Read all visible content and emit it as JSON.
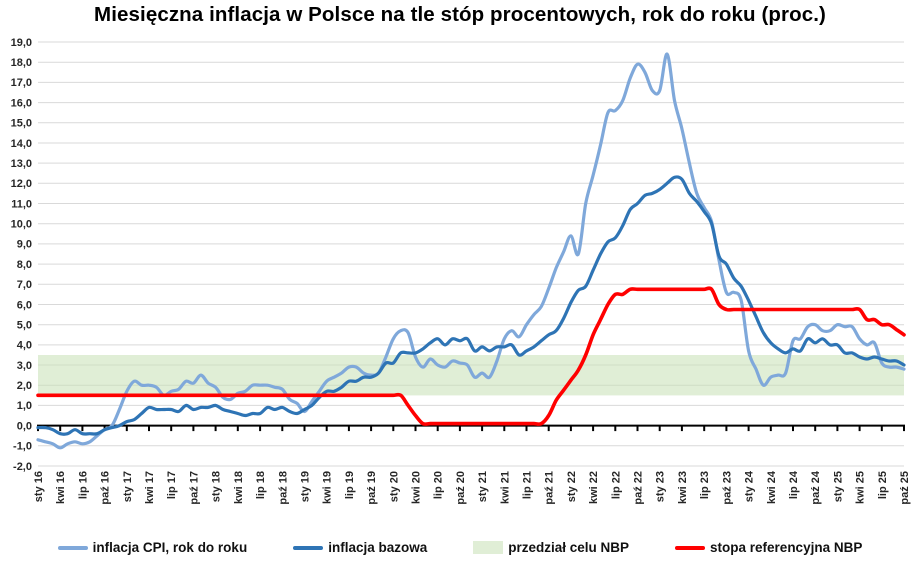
{
  "title": "Miesięczna inflacja w Polsce na tle stóp procentowych, rok do roku (proc.)",
  "colors": {
    "cpi": "#7FA8DA",
    "core": "#2E74B5",
    "rate": "#FF0000",
    "band_fill": "rgba(198,224,180,0.55)",
    "grid": "#D9D9D9",
    "axis": "#000000",
    "tick_text": "#262626"
  },
  "legend": {
    "items": [
      {
        "label": "inflacja CPI, rok do roku",
        "series": "cpi",
        "swatch": "line"
      },
      {
        "label": "inflacja bazowa",
        "series": "core",
        "swatch": "line"
      },
      {
        "label": "przedział celu NBP",
        "series": "band",
        "swatch": "band"
      },
      {
        "label": "stopa referencyjna NBP",
        "series": "rate",
        "swatch": "line"
      }
    ]
  },
  "chart_data": {
    "type": "line",
    "title": "Miesięczna inflacja w Polsce na tle stóp procentowych, rok do roku (proc.)",
    "frequency": "monthly",
    "x_start": "sty 16",
    "x_end": "paź 25",
    "ylim": [
      -2.0,
      19.0
    ],
    "ytick_step": 1.0,
    "grid": "horizontal",
    "legend_position": "bottom",
    "y_tick_labels": [
      "19,0",
      "18,0",
      "17,0",
      "16,0",
      "15,0",
      "14,0",
      "13,0",
      "12,0",
      "11,0",
      "10,0",
      "9,0",
      "8,0",
      "7,0",
      "6,0",
      "5,0",
      "4,0",
      "3,0",
      "2,0",
      "1,0",
      "0,0",
      "-1,0",
      "-2,0"
    ],
    "x_tick_labels": [
      "sty 16",
      "kwi 16",
      "lip 16",
      "paź 16",
      "sty 17",
      "kwi 17",
      "lip 17",
      "paź 17",
      "sty 18",
      "kwi 18",
      "lip 18",
      "paź 18",
      "sty 19",
      "kwi 19",
      "lip 19",
      "paź 19",
      "sty 20",
      "kwi 20",
      "lip 20",
      "paź 20",
      "sty 21",
      "kwi 21",
      "lip 21",
      "paź 21",
      "sty 22",
      "kwi 22",
      "lip 22",
      "paź 22",
      "sty 23",
      "kwi 23",
      "lip 23",
      "paź 23",
      "sty 24",
      "kwi 24",
      "lip 24",
      "paź 24",
      "sty 25",
      "kwi 25",
      "lip 25",
      "paź 25"
    ],
    "x_ticks_every_n_months": 3,
    "band": {
      "name": "przedział celu NBP",
      "from": 1.5,
      "to": 3.5
    },
    "series": [
      {
        "name": "inflacja CPI, rok do roku",
        "key": "cpi",
        "values": [
          -0.7,
          -0.8,
          -0.9,
          -1.1,
          -0.9,
          -0.8,
          -0.9,
          -0.8,
          -0.5,
          -0.2,
          0.0,
          0.8,
          1.7,
          2.2,
          2.0,
          2.0,
          1.9,
          1.5,
          1.7,
          1.8,
          2.2,
          2.1,
          2.5,
          2.1,
          1.9,
          1.4,
          1.3,
          1.6,
          1.7,
          2.0,
          2.0,
          2.0,
          1.9,
          1.8,
          1.3,
          1.1,
          0.7,
          1.2,
          1.7,
          2.2,
          2.4,
          2.6,
          2.9,
          2.9,
          2.6,
          2.5,
          2.6,
          3.4,
          4.3,
          4.7,
          4.6,
          3.4,
          2.9,
          3.3,
          3.0,
          2.9,
          3.2,
          3.1,
          3.0,
          2.4,
          2.6,
          2.4,
          3.2,
          4.3,
          4.7,
          4.4,
          5.0,
          5.5,
          5.9,
          6.8,
          7.8,
          8.6,
          9.4,
          8.5,
          11.0,
          12.4,
          13.9,
          15.5,
          15.6,
          16.1,
          17.2,
          17.9,
          17.5,
          16.6,
          16.6,
          18.4,
          16.1,
          14.7,
          13.0,
          11.5,
          10.8,
          10.1,
          8.2,
          6.6,
          6.6,
          6.2,
          3.7,
          2.8,
          2.0,
          2.4,
          2.5,
          2.6,
          4.2,
          4.3,
          4.9,
          5.0,
          4.7,
          4.7,
          5.0,
          4.9,
          4.9,
          4.3,
          4.0,
          4.1,
          3.1,
          2.9,
          2.9,
          2.8
        ]
      },
      {
        "name": "inflacja bazowa",
        "key": "core",
        "values": [
          -0.1,
          -0.1,
          -0.2,
          -0.4,
          -0.4,
          -0.2,
          -0.4,
          -0.4,
          -0.4,
          -0.2,
          -0.1,
          0.0,
          0.2,
          0.3,
          0.6,
          0.9,
          0.8,
          0.8,
          0.8,
          0.7,
          1.0,
          0.8,
          0.9,
          0.9,
          1.0,
          0.8,
          0.7,
          0.6,
          0.5,
          0.6,
          0.6,
          0.9,
          0.8,
          0.9,
          0.7,
          0.6,
          0.8,
          1.0,
          1.4,
          1.7,
          1.7,
          1.9,
          2.2,
          2.2,
          2.4,
          2.4,
          2.6,
          3.1,
          3.1,
          3.6,
          3.6,
          3.6,
          3.8,
          4.1,
          4.3,
          4.0,
          4.3,
          4.2,
          4.3,
          3.7,
          3.9,
          3.7,
          3.9,
          3.9,
          4.0,
          3.5,
          3.7,
          3.9,
          4.2,
          4.5,
          4.7,
          5.3,
          6.1,
          6.7,
          6.9,
          7.7,
          8.5,
          9.1,
          9.3,
          9.9,
          10.7,
          11.0,
          11.4,
          11.5,
          11.7,
          12.0,
          12.3,
          12.2,
          11.5,
          11.1,
          10.6,
          10.0,
          8.4,
          8.0,
          7.3,
          6.9,
          6.2,
          5.4,
          4.6,
          4.1,
          3.8,
          3.6,
          3.8,
          3.7,
          4.3,
          4.1,
          4.3,
          4.0,
          4.0,
          3.6,
          3.6,
          3.4,
          3.3,
          3.4,
          3.3,
          3.2,
          3.2,
          3.0
        ]
      },
      {
        "name": "stopa referencyjna NBP",
        "key": "rate",
        "values": [
          1.5,
          1.5,
          1.5,
          1.5,
          1.5,
          1.5,
          1.5,
          1.5,
          1.5,
          1.5,
          1.5,
          1.5,
          1.5,
          1.5,
          1.5,
          1.5,
          1.5,
          1.5,
          1.5,
          1.5,
          1.5,
          1.5,
          1.5,
          1.5,
          1.5,
          1.5,
          1.5,
          1.5,
          1.5,
          1.5,
          1.5,
          1.5,
          1.5,
          1.5,
          1.5,
          1.5,
          1.5,
          1.5,
          1.5,
          1.5,
          1.5,
          1.5,
          1.5,
          1.5,
          1.5,
          1.5,
          1.5,
          1.5,
          1.5,
          1.5,
          1.0,
          0.5,
          0.1,
          0.1,
          0.1,
          0.1,
          0.1,
          0.1,
          0.1,
          0.1,
          0.1,
          0.1,
          0.1,
          0.1,
          0.1,
          0.1,
          0.1,
          0.1,
          0.1,
          0.5,
          1.25,
          1.75,
          2.25,
          2.75,
          3.5,
          4.5,
          5.25,
          6.0,
          6.5,
          6.5,
          6.75,
          6.75,
          6.75,
          6.75,
          6.75,
          6.75,
          6.75,
          6.75,
          6.75,
          6.75,
          6.75,
          6.75,
          6.0,
          5.75,
          5.75,
          5.75,
          5.75,
          5.75,
          5.75,
          5.75,
          5.75,
          5.75,
          5.75,
          5.75,
          5.75,
          5.75,
          5.75,
          5.75,
          5.75,
          5.75,
          5.75,
          5.75,
          5.25,
          5.25,
          5.0,
          5.0,
          4.75,
          4.5
        ]
      }
    ]
  }
}
